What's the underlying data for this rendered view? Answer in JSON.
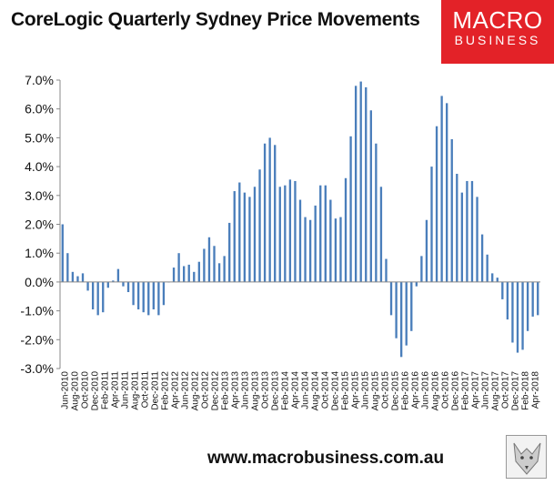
{
  "header": {
    "title": "CoreLogic Quarterly Sydney Price Movements",
    "logo_line1": "MACRO",
    "logo_line2": "BUSINESS"
  },
  "footer": {
    "url": "www.macrobusiness.com.au"
  },
  "colors": {
    "bar": "#4a7ebb",
    "logo_bg": "#e32228",
    "axis": "#888888"
  },
  "chart_data": {
    "type": "bar",
    "title": "CoreLogic Quarterly Sydney Price Movements",
    "xlabel": "",
    "ylabel": "",
    "ylim": [
      -3,
      7
    ],
    "y_ticks": [
      "7.0%",
      "6.0%",
      "5.0%",
      "4.0%",
      "3.0%",
      "2.0%",
      "1.0%",
      "0.0%",
      "-1.0%",
      "-2.0%",
      "-3.0%"
    ],
    "grid": false,
    "legend": "none",
    "x_tick_labels": [
      "Jun-2010",
      "Aug-2010",
      "Oct-2010",
      "Dec-2010",
      "Feb-2011",
      "Apr-2011",
      "Jun-2011",
      "Aug-2011",
      "Oct-2011",
      "Dec-2011",
      "Feb-2012",
      "Apr-2012",
      "Jun-2012",
      "Aug-2012",
      "Oct-2012",
      "Dec-2012",
      "Feb-2013",
      "Apr-2013",
      "Jun-2013",
      "Aug-2013",
      "Oct-2013",
      "Dec-2013",
      "Feb-2014",
      "Apr-2014",
      "Jun-2014",
      "Aug-2014",
      "Oct-2014",
      "Dec-2014",
      "Feb-2015",
      "Apr-2015",
      "Jun-2015",
      "Aug-2015",
      "Oct-2015",
      "Dec-2015",
      "Feb-2016",
      "Apr-2016",
      "Jun-2016",
      "Aug-2016",
      "Oct-2016",
      "Dec-2016",
      "Feb-2017",
      "Apr-2017",
      "Jun-2017",
      "Aug-2017",
      "Oct-2017",
      "Dec-2017",
      "Feb-2018",
      "Apr-2018"
    ],
    "values": [
      2.0,
      1.0,
      0.35,
      0.2,
      0.3,
      -0.3,
      -0.95,
      -1.15,
      -1.05,
      -0.2,
      0.05,
      0.45,
      -0.15,
      -0.35,
      -0.8,
      -0.95,
      -1.05,
      -1.15,
      -0.95,
      -1.15,
      -0.8,
      0.0,
      0.5,
      1.0,
      0.55,
      0.6,
      0.35,
      0.7,
      1.15,
      1.55,
      1.25,
      0.65,
      0.9,
      2.05,
      3.15,
      3.45,
      3.1,
      2.95,
      3.3,
      3.9,
      4.8,
      5.0,
      4.75,
      3.3,
      3.35,
      3.55,
      3.5,
      2.85,
      2.25,
      2.15,
      2.65,
      3.35,
      3.35,
      2.85,
      2.2,
      2.25,
      3.6,
      5.05,
      6.8,
      6.95,
      6.75,
      5.95,
      4.8,
      3.3,
      0.8,
      -1.15,
      -1.95,
      -2.6,
      -2.2,
      -1.7,
      -0.15,
      0.9,
      2.15,
      4.0,
      5.4,
      6.45,
      6.2,
      4.95,
      3.75,
      3.1,
      3.5,
      3.5,
      2.95,
      1.65,
      0.95,
      0.3,
      0.15,
      -0.6,
      -1.3,
      -2.1,
      -2.45,
      -2.35,
      -1.7,
      -1.2,
      -1.15
    ]
  }
}
